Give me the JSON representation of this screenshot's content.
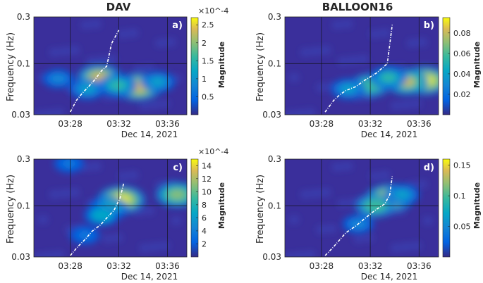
{
  "figure": {
    "column_titles": [
      "DAV",
      "BALLOON16"
    ],
    "y_axis_label": "Frequency (Hz)",
    "x_axis_label": "Dec 14, 2021",
    "colorbar_label": "Magnitude"
  },
  "chart_data": [
    {
      "type": "heatmap",
      "panel_label": "a)",
      "station": "DAV",
      "xlabel": "Dec 14, 2021",
      "ylabel": "Frequency (Hz)",
      "x_ticks": [
        "03:28",
        "03:32",
        "03:36"
      ],
      "y_ticks": [
        "0.03",
        "0.1",
        "0.3"
      ],
      "ylim": [
        0.03,
        0.3
      ],
      "colorbar": {
        "label": "Magnitude",
        "multiplier": "×10^-4",
        "ticks": [
          "0.5",
          "1",
          "1.5",
          "2",
          "2.5"
        ],
        "range": [
          0,
          2.7
        ]
      },
      "ridge_line": [
        [
          3.0,
          0.032
        ],
        [
          3.5,
          0.042
        ],
        [
          4.0,
          0.05
        ],
        [
          4.5,
          0.058
        ],
        [
          5.0,
          0.068
        ],
        [
          5.6,
          0.085
        ],
        [
          6.0,
          0.094
        ],
        [
          6.4,
          0.16
        ],
        [
          7.0,
          0.22
        ]
      ],
      "hotspots": [
        {
          "t_min": 8.6,
          "f_hz": 0.058,
          "magnitude": 2.5
        },
        {
          "t_min": 5.4,
          "f_hz": 0.072,
          "magnitude": 2.2
        },
        {
          "t_min": 6.9,
          "f_hz": 0.06,
          "magnitude": 1.6
        },
        {
          "t_min": 4.4,
          "f_hz": 0.055,
          "magnitude": 1.2
        },
        {
          "t_min": 10.2,
          "f_hz": 0.065,
          "magnitude": 1.2
        },
        {
          "t_min": 2.0,
          "f_hz": 0.07,
          "magnitude": 0.8
        }
      ]
    },
    {
      "type": "heatmap",
      "panel_label": "b)",
      "station": "BALLOON16",
      "xlabel": "Dec 14, 2021",
      "ylabel": "Frequency (Hz)",
      "x_ticks": [
        "03:28",
        "03:32",
        "03:36"
      ],
      "y_ticks": [
        "0.03",
        "0.1",
        "0.3"
      ],
      "ylim": [
        0.03,
        0.3
      ],
      "colorbar": {
        "label": "Magnitude",
        "multiplier": "",
        "ticks": [
          "0.02",
          "0.04",
          "0.06",
          "0.08"
        ],
        "range": [
          0,
          0.095
        ]
      },
      "ridge_line": [
        [
          3.3,
          0.032
        ],
        [
          4.0,
          0.042
        ],
        [
          4.5,
          0.048
        ],
        [
          5.0,
          0.053
        ],
        [
          5.8,
          0.058
        ],
        [
          6.5,
          0.067
        ],
        [
          7.5,
          0.08
        ],
        [
          8.4,
          0.1
        ],
        [
          8.8,
          0.25
        ]
      ],
      "hotspots": [
        {
          "t_min": 11.5,
          "f_hz": 0.067,
          "magnitude": 0.09
        },
        {
          "t_min": 10.0,
          "f_hz": 0.065,
          "magnitude": 0.075
        },
        {
          "t_min": 7.0,
          "f_hz": 0.06,
          "magnitude": 0.06
        },
        {
          "t_min": 5.2,
          "f_hz": 0.055,
          "magnitude": 0.04
        },
        {
          "t_min": 8.5,
          "f_hz": 0.072,
          "magnitude": 0.05
        }
      ]
    },
    {
      "type": "heatmap",
      "panel_label": "c)",
      "station": "DAV",
      "xlabel": "Dec 14, 2021",
      "ylabel": "Frequency (Hz)",
      "x_ticks": [
        "03:28",
        "03:32",
        "03:36"
      ],
      "y_ticks": [
        "0.03",
        "0.1",
        "0.3"
      ],
      "ylim": [
        0.03,
        0.3
      ],
      "colorbar": {
        "label": "Magnitude",
        "multiplier": "×10^-4",
        "ticks": [
          "2",
          "4",
          "6",
          "8",
          "10",
          "12",
          "14"
        ],
        "range": [
          0,
          15
        ]
      },
      "ridge_line": [
        [
          3.0,
          0.031
        ],
        [
          3.6,
          0.038
        ],
        [
          4.2,
          0.045
        ],
        [
          4.8,
          0.055
        ],
        [
          5.5,
          0.064
        ],
        [
          6.0,
          0.075
        ],
        [
          6.6,
          0.09
        ],
        [
          7.1,
          0.12
        ],
        [
          7.4,
          0.17
        ]
      ],
      "hotspots": [
        {
          "t_min": 7.2,
          "f_hz": 0.115,
          "magnitude": 14
        },
        {
          "t_min": 6.2,
          "f_hz": 0.095,
          "magnitude": 9
        },
        {
          "t_min": 11.8,
          "f_hz": 0.13,
          "magnitude": 11
        },
        {
          "t_min": 5.6,
          "f_hz": 0.08,
          "magnitude": 7
        },
        {
          "t_min": 4.2,
          "f_hz": 0.05,
          "magnitude": 4
        },
        {
          "t_min": 2.9,
          "f_hz": 0.27,
          "magnitude": 4
        }
      ]
    },
    {
      "type": "heatmap",
      "panel_label": "d)",
      "station": "BALLOON16",
      "xlabel": "Dec 14, 2021",
      "ylabel": "Frequency (Hz)",
      "x_ticks": [
        "03:28",
        "03:32",
        "03:36"
      ],
      "y_ticks": [
        "0.03",
        "0.1",
        "0.3"
      ],
      "ylim": [
        0.03,
        0.3
      ],
      "colorbar": {
        "label": "Magnitude",
        "multiplier": "",
        "ticks": [
          "0.05",
          "0.1",
          "0.15"
        ],
        "range": [
          0,
          0.16
        ]
      },
      "ridge_line": [
        [
          3.3,
          0.031
        ],
        [
          3.9,
          0.037
        ],
        [
          4.5,
          0.045
        ],
        [
          5.0,
          0.053
        ],
        [
          5.8,
          0.062
        ],
        [
          6.6,
          0.075
        ],
        [
          7.4,
          0.09
        ],
        [
          8.2,
          0.105
        ],
        [
          8.6,
          0.13
        ],
        [
          8.8,
          0.2
        ]
      ],
      "hotspots": [
        {
          "t_min": 8.6,
          "f_hz": 0.12,
          "magnitude": 0.15
        },
        {
          "t_min": 7.4,
          "f_hz": 0.1,
          "magnitude": 0.1
        },
        {
          "t_min": 9.6,
          "f_hz": 0.13,
          "magnitude": 0.07
        },
        {
          "t_min": 6.0,
          "f_hz": 0.065,
          "magnitude": 0.05
        }
      ]
    }
  ]
}
